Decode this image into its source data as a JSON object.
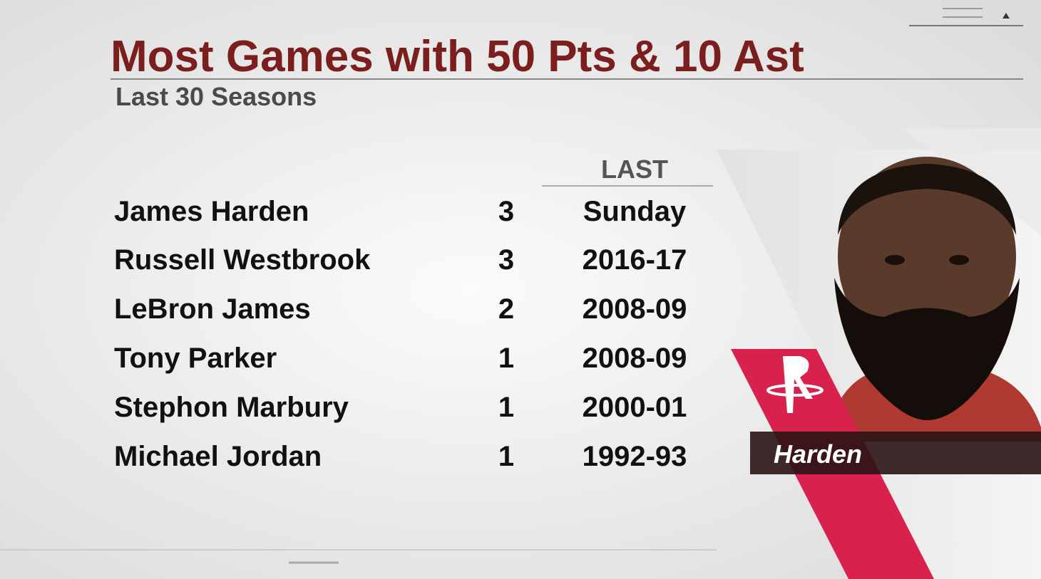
{
  "header": {
    "title": "Most Games with 50 Pts & 10 Ast",
    "subtitle": "Last 30 Seasons"
  },
  "table": {
    "columns": [
      "LAST"
    ],
    "rows": [
      [
        "James Harden",
        3,
        "Sunday"
      ],
      [
        "Russell Westbrook",
        3,
        "2016-17"
      ],
      [
        "LeBron James",
        2,
        "2008-09"
      ],
      [
        "Tony Parker",
        1,
        "2008-09"
      ],
      [
        "Stephon Marbury",
        1,
        "2000-01"
      ],
      [
        "Michael Jordan",
        1,
        "1992-93"
      ]
    ]
  },
  "player": {
    "label": "Harden"
  }
}
